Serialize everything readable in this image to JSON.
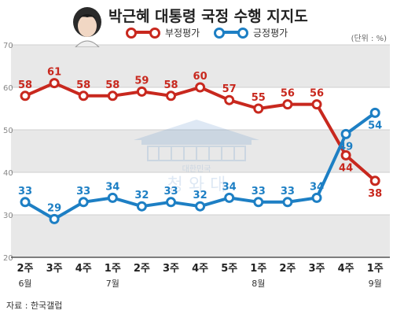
{
  "title": "박근혜 대통령 국정 수행 지지도",
  "unit": "(단위 : %)",
  "source": "자료 : 한국갤럽",
  "watermark": {
    "small": "대한민국",
    "large": "청 와 대"
  },
  "colors": {
    "negative": "#c8281e",
    "positive": "#1d7fc4",
    "band": "#e8e8e8"
  },
  "chart_data": {
    "type": "line",
    "title": "박근혜 대통령 국정 수행 지지도",
    "ylabel": "(단위 : %)",
    "ylim": [
      20,
      70
    ],
    "yticks": [
      20,
      30,
      40,
      50,
      60,
      70
    ],
    "categories": [
      "2주",
      "3주",
      "4주",
      "1주",
      "2주",
      "3주",
      "4주",
      "5주",
      "1주",
      "2주",
      "3주",
      "4주",
      "1주"
    ],
    "month_labels": [
      {
        "index": 0,
        "label": "6월"
      },
      {
        "index": 3,
        "label": "7월"
      },
      {
        "index": 8,
        "label": "8월"
      },
      {
        "index": 12,
        "label": "9월"
      }
    ],
    "series": [
      {
        "name": "부정평가",
        "color": "#c8281e",
        "values": [
          58,
          61,
          58,
          58,
          59,
          58,
          60,
          57,
          55,
          56,
          56,
          44,
          38
        ]
      },
      {
        "name": "긍정평가",
        "color": "#1d7fc4",
        "values": [
          33,
          29,
          33,
          34,
          32,
          33,
          32,
          34,
          33,
          33,
          34,
          49,
          54
        ]
      }
    ],
    "legend": "top",
    "grid": "horizontal-bands"
  }
}
